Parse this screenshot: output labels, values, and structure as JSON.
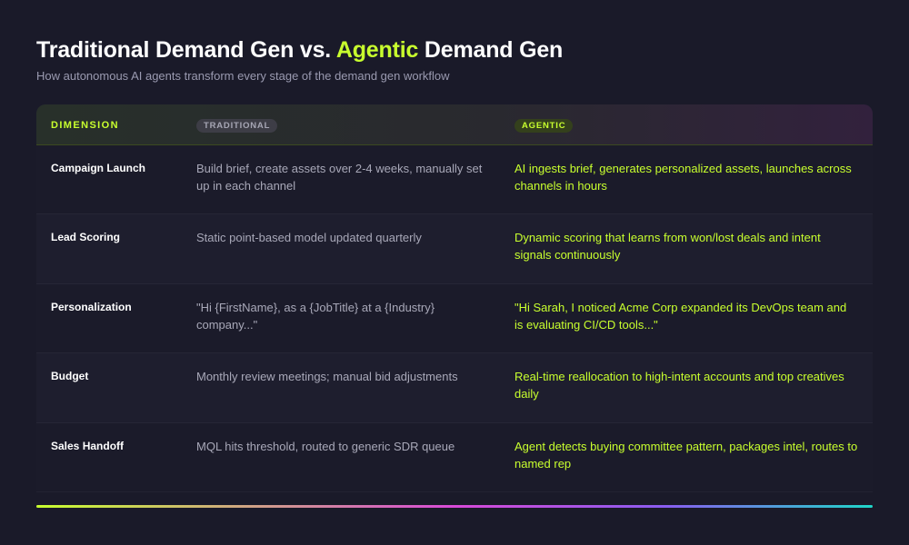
{
  "title": {
    "part1": "Traditional Demand Gen vs. ",
    "accent": "Agentic",
    "part2": " Demand Gen"
  },
  "subtitle": "How autonomous AI agents transform every stage of the demand gen workflow",
  "table": {
    "headers": {
      "dimension": "DIMENSION",
      "traditional": "TRADITIONAL",
      "agentic": "AGENTIC"
    },
    "rows": [
      {
        "dimension": "Campaign Launch",
        "traditional": "Build brief, create assets over 2-4 weeks, manually set up in each channel",
        "agentic": "AI ingests brief, generates personalized assets, launches across channels in hours"
      },
      {
        "dimension": "Lead Scoring",
        "traditional": "Static point-based model updated quarterly",
        "agentic": "Dynamic scoring that learns from won/lost deals and intent signals continuously"
      },
      {
        "dimension": "Personalization",
        "traditional": "\"Hi {FirstName}, as a {JobTitle} at a {Industry} company...\"",
        "agentic": "\"Hi Sarah, I noticed Acme Corp expanded its DevOps team and is evaluating CI/CD tools...\""
      },
      {
        "dimension": "Budget",
        "traditional": "Monthly review meetings; manual bid adjustments",
        "agentic": "Real-time reallocation to high-intent accounts and top creatives daily"
      },
      {
        "dimension": "Sales Handoff",
        "traditional": "MQL hits threshold, routed to generic SDR queue",
        "agentic": "Agent detects buying committee pattern, packages intel, routes to named rep"
      }
    ]
  },
  "colors": {
    "background": "#1a1a29",
    "accent": "#c8ff2e",
    "traditional_text": "#a8a8b8"
  }
}
